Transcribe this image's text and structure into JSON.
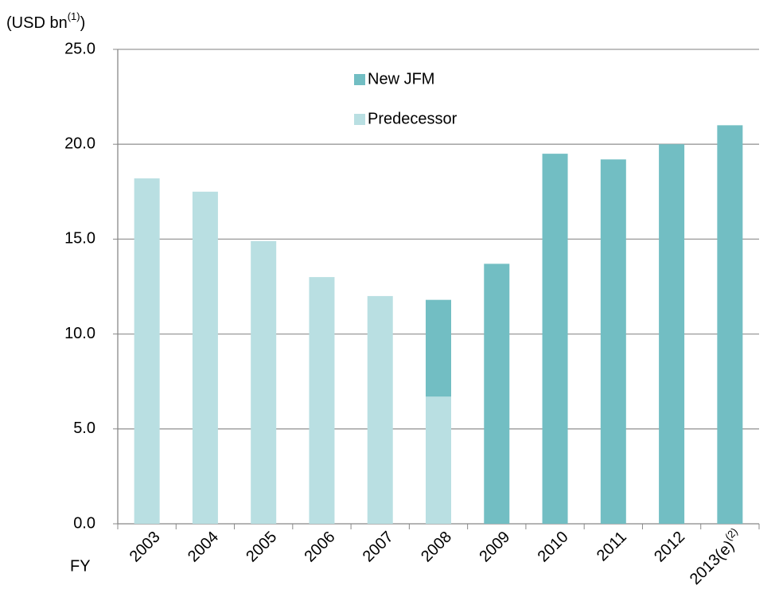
{
  "chart_data": {
    "type": "stacked_bar",
    "y_label": [
      "(USD bn",
      "(1)",
      ")"
    ],
    "x_label": "FY",
    "categories": [
      "2003",
      "2004",
      "2005",
      "2006",
      "2007",
      "2008",
      "2009",
      "2010",
      "2011",
      "2012",
      "2013(e)"
    ],
    "x_note": "(2)",
    "series": [
      {
        "name": "Predecessor",
        "color": "#b9dfe2",
        "values": [
          18.2,
          17.5,
          14.9,
          13.0,
          12.0,
          6.7,
          null,
          null,
          null,
          null,
          null
        ]
      },
      {
        "name": "New JFM",
        "color": "#72bec3",
        "values": [
          null,
          null,
          null,
          null,
          null,
          5.1,
          13.7,
          19.5,
          19.2,
          20.0,
          21.0
        ]
      }
    ],
    "ylim": [
      0,
      25
    ],
    "yticks": [
      {
        "value": 0,
        "label": "0.0"
      },
      {
        "value": 5,
        "label": "5.0"
      },
      {
        "value": 10,
        "label": "10.0"
      },
      {
        "value": 15,
        "label": "15.0"
      },
      {
        "value": 20,
        "label": "20.0"
      },
      {
        "value": 25,
        "label": "25.0"
      }
    ],
    "grid": true
  }
}
